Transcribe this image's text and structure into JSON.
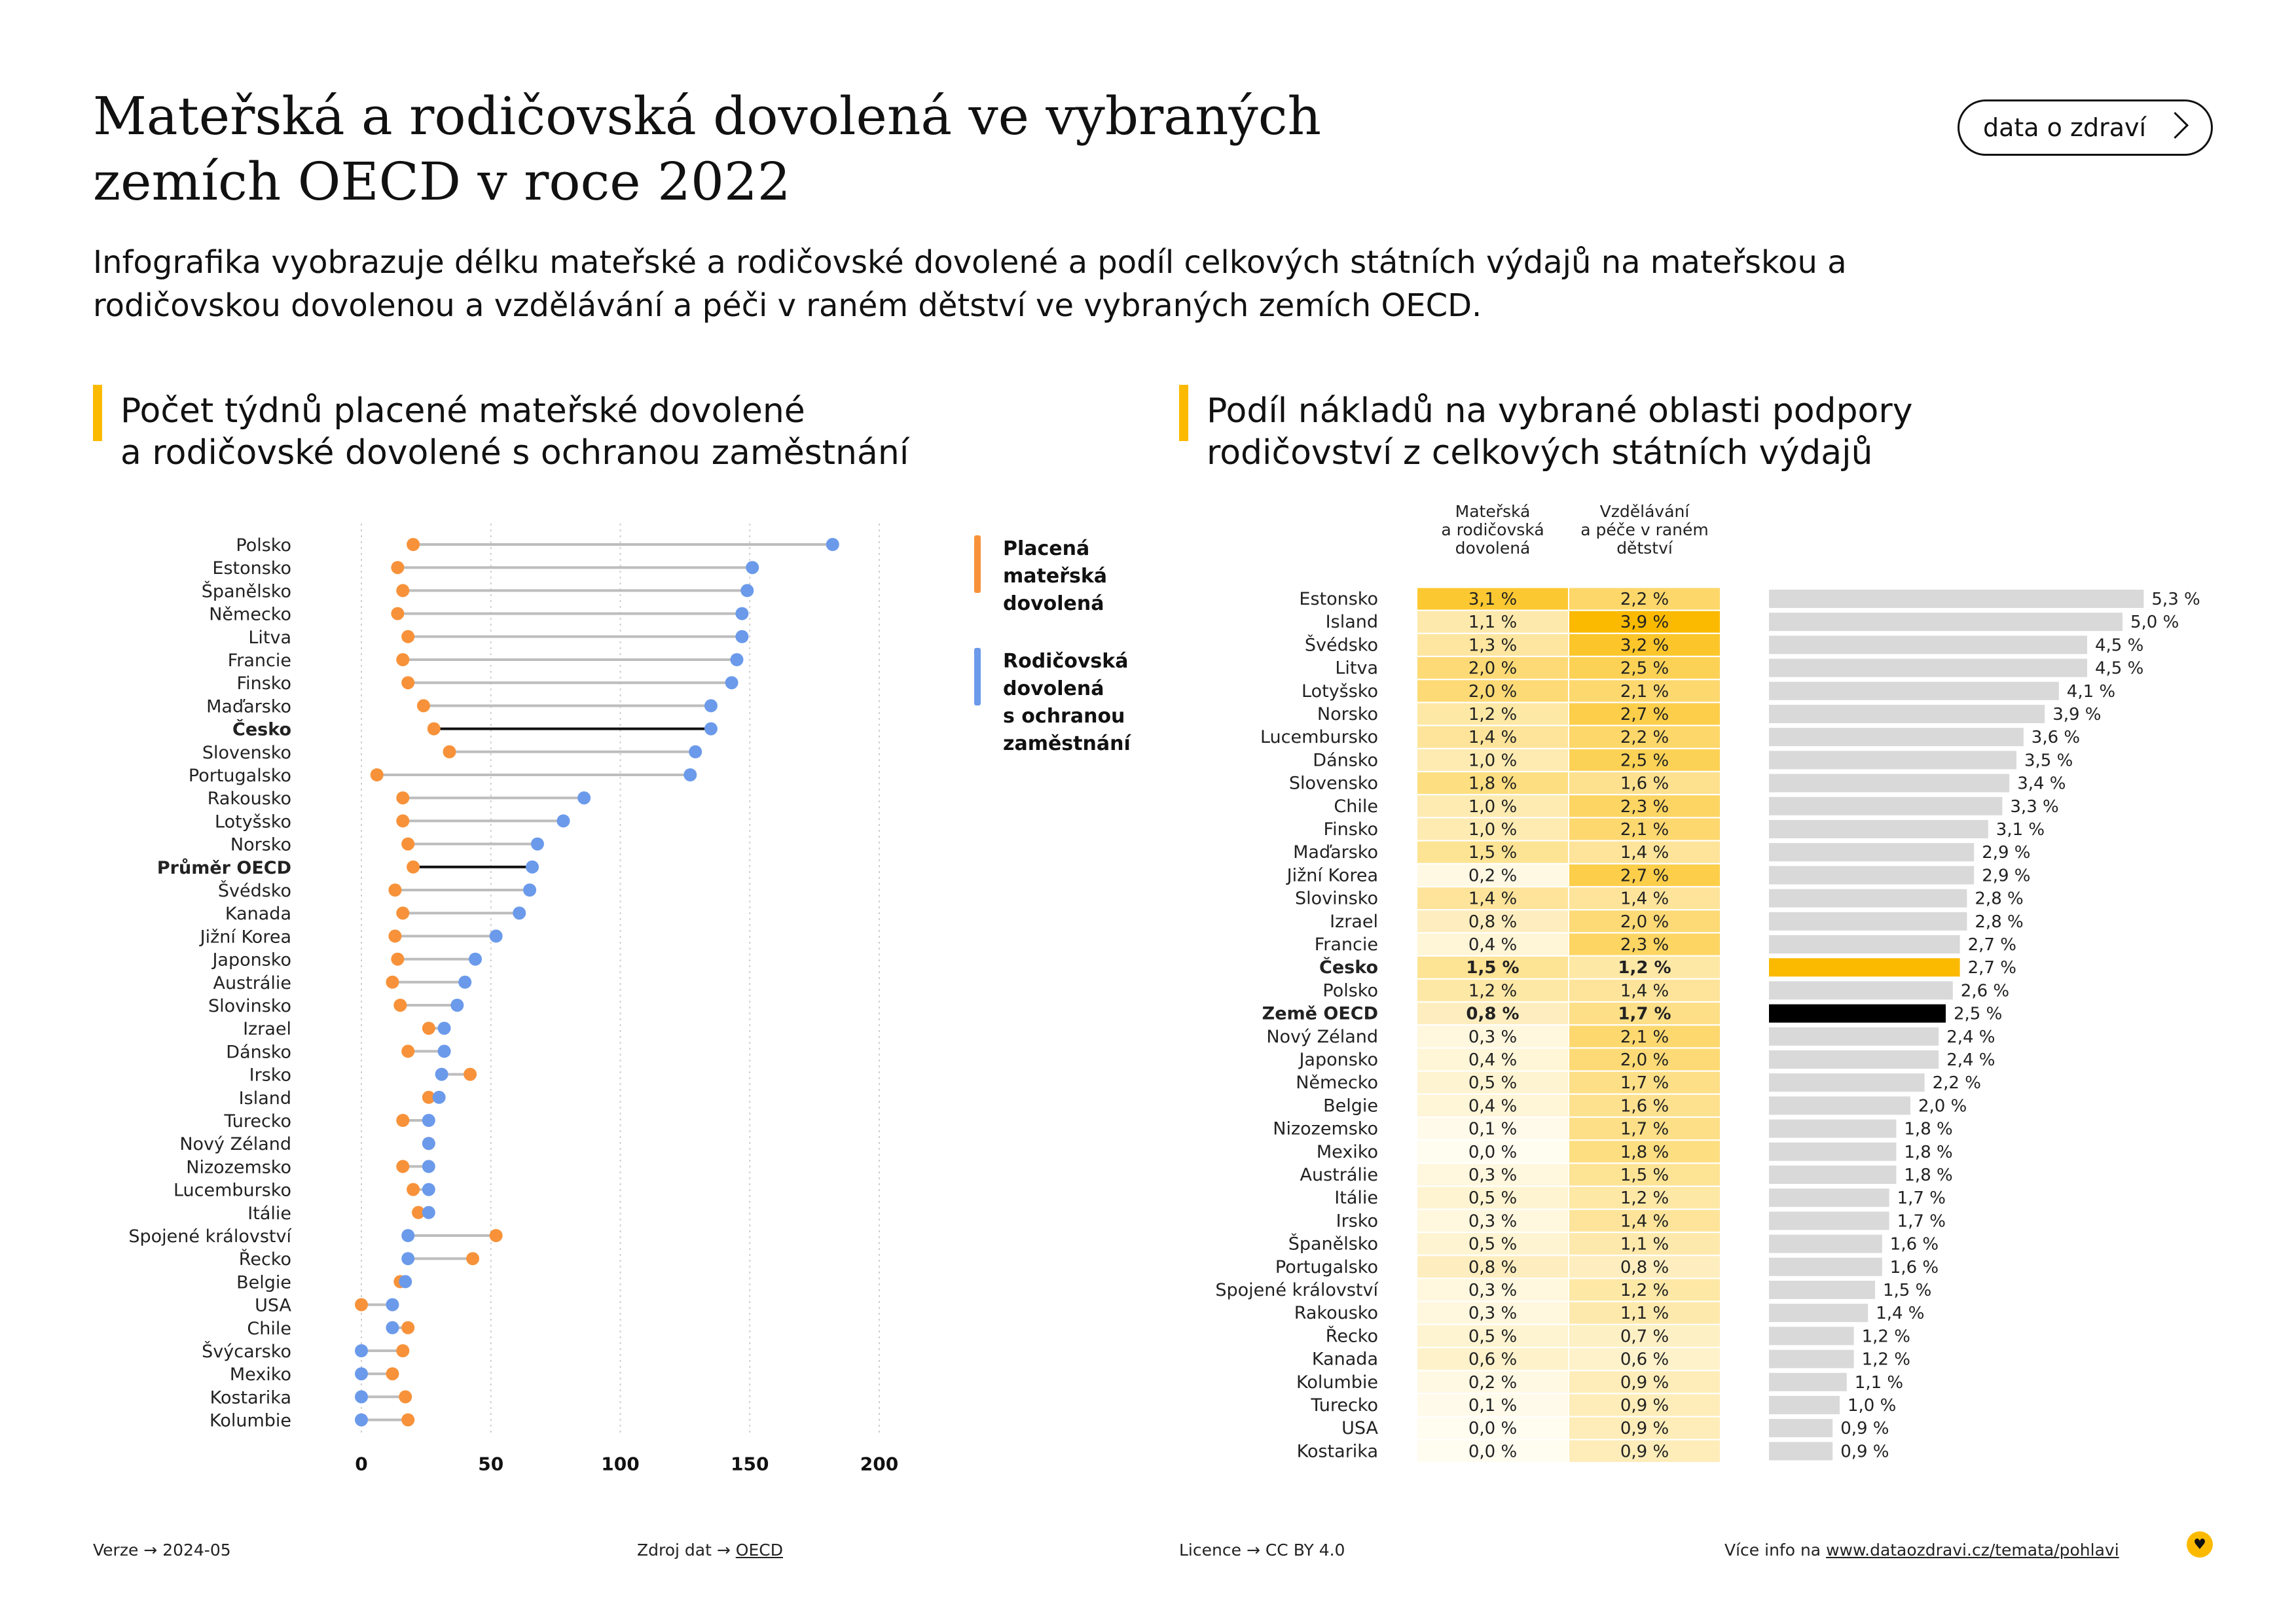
{
  "header": {
    "title": "Mateřská a rodičovská dovolená ve vybraných\nzemích OECD v roce 2022",
    "subtitle": "Infografika vyobrazuje délku mateřské a rodičovské dovolené a podíl celkových státních výdajů na mateřskou a rodičovskou dovolenou a vzdělávání a péči v raném dětství ve vybraných zemích OECD.",
    "brand_button": "data o zdraví"
  },
  "left_section": {
    "title": "Počet týdnů placené mateřské dovolené\na rodičovské dovolené s ochranou zaměstnání"
  },
  "right_section": {
    "title": "Podíl nákladů na vybrané oblasti podpory\nrodičovství z celkových státních výdajů"
  },
  "legend": {
    "maternity": "Placená\nmateřská\ndovolená",
    "parental": "Rodičovská\ndovolená\ns ochranou\nzaměstnání"
  },
  "colors": {
    "maternity": "#F7923A",
    "parental": "#6B9AEB",
    "accent": "#FBBA00",
    "highlight_line": "#111111",
    "connector": "#BDBDBD",
    "bar": "#D9D9D9",
    "bar_czech": "#FBBA00",
    "bar_oecd": "#000000"
  },
  "chart_data": [
    {
      "type": "dumbbell",
      "title": "Počet týdnů placené mateřské dovolené a rodičovské dovolené s ochranou zaměstnání",
      "x_ticks": [
        0,
        50,
        100,
        150,
        200
      ],
      "xlim": [
        0,
        200
      ],
      "grid": true,
      "legend_position": "right",
      "series": [
        {
          "name": "Placená mateřská dovolená"
        },
        {
          "name": "Rodičovská dovolená s ochranou zaměstnání"
        }
      ],
      "rows": [
        {
          "label": "Polsko",
          "maternity": 20,
          "parental": 182
        },
        {
          "label": "Estonsko",
          "maternity": 14,
          "parental": 151
        },
        {
          "label": "Španělsko",
          "maternity": 16,
          "parental": 149
        },
        {
          "label": "Německo",
          "maternity": 14,
          "parental": 147
        },
        {
          "label": "Litva",
          "maternity": 18,
          "parental": 147
        },
        {
          "label": "Francie",
          "maternity": 16,
          "parental": 145
        },
        {
          "label": "Finsko",
          "maternity": 18,
          "parental": 143
        },
        {
          "label": "Maďarsko",
          "maternity": 24,
          "parental": 135
        },
        {
          "label": "Česko",
          "maternity": 28,
          "parental": 135,
          "bold": true
        },
        {
          "label": "Slovensko",
          "maternity": 34,
          "parental": 129
        },
        {
          "label": "Portugalsko",
          "maternity": 6,
          "parental": 127
        },
        {
          "label": "Rakousko",
          "maternity": 16,
          "parental": 86
        },
        {
          "label": "Lotyšsko",
          "maternity": 16,
          "parental": 78
        },
        {
          "label": "Norsko",
          "maternity": 18,
          "parental": 68
        },
        {
          "label": "Průměr OECD",
          "maternity": 20,
          "parental": 66,
          "bold": true
        },
        {
          "label": "Švédsko",
          "maternity": 13,
          "parental": 65
        },
        {
          "label": "Kanada",
          "maternity": 16,
          "parental": 61
        },
        {
          "label": "Jižní Korea",
          "maternity": 13,
          "parental": 52
        },
        {
          "label": "Japonsko",
          "maternity": 14,
          "parental": 44
        },
        {
          "label": "Austrálie",
          "maternity": 12,
          "parental": 40
        },
        {
          "label": "Slovinsko",
          "maternity": 15,
          "parental": 37
        },
        {
          "label": "Izrael",
          "maternity": 26,
          "parental": 32
        },
        {
          "label": "Dánsko",
          "maternity": 18,
          "parental": 32
        },
        {
          "label": "Irsko",
          "maternity": 42,
          "parental": 31
        },
        {
          "label": "Island",
          "maternity": 26,
          "parental": 30
        },
        {
          "label": "Turecko",
          "maternity": 16,
          "parental": 26
        },
        {
          "label": "Nový Zéland",
          "maternity": 26,
          "parental": 26
        },
        {
          "label": "Nizozemsko",
          "maternity": 16,
          "parental": 26
        },
        {
          "label": "Lucembursko",
          "maternity": 20,
          "parental": 26
        },
        {
          "label": "Itálie",
          "maternity": 22,
          "parental": 26
        },
        {
          "label": "Spojené království",
          "maternity": 52,
          "parental": 18
        },
        {
          "label": "Řecko",
          "maternity": 43,
          "parental": 18
        },
        {
          "label": "Belgie",
          "maternity": 15,
          "parental": 17
        },
        {
          "label": "USA",
          "maternity": 0,
          "parental": 12
        },
        {
          "label": "Chile",
          "maternity": 18,
          "parental": 12
        },
        {
          "label": "Švýcarsko",
          "maternity": 16,
          "parental": 0
        },
        {
          "label": "Mexiko",
          "maternity": 12,
          "parental": 0
        },
        {
          "label": "Kostarika",
          "maternity": 17,
          "parental": 0
        },
        {
          "label": "Kolumbie",
          "maternity": 18,
          "parental": 0
        }
      ]
    },
    {
      "type": "table",
      "title": "Podíl nákladů na vybrané oblasti podpory rodičovství z celkových státních výdajů",
      "columns": [
        "Mateřská a rodičovská dovolená",
        "Vzdělávání a péče v raném dětství"
      ],
      "rows": [
        {
          "label": "Estonsko",
          "leave": "3,1 %",
          "ecec": "2,2 %",
          "total": 5.3,
          "total_label": "5,3 %"
        },
        {
          "label": "Island",
          "leave": "1,1 %",
          "ecec": "3,9 %",
          "total": 5.0,
          "total_label": "5,0 %"
        },
        {
          "label": "Švédsko",
          "leave": "1,3 %",
          "ecec": "3,2 %",
          "total": 4.5,
          "total_label": "4,5 %"
        },
        {
          "label": "Litva",
          "leave": "2,0 %",
          "ecec": "2,5 %",
          "total": 4.5,
          "total_label": "4,5 %"
        },
        {
          "label": "Lotyšsko",
          "leave": "2,0 %",
          "ecec": "2,1 %",
          "total": 4.1,
          "total_label": "4,1 %"
        },
        {
          "label": "Norsko",
          "leave": "1,2 %",
          "ecec": "2,7 %",
          "total": 3.9,
          "total_label": "3,9 %"
        },
        {
          "label": "Lucembursko",
          "leave": "1,4 %",
          "ecec": "2,2 %",
          "total": 3.6,
          "total_label": "3,6 %"
        },
        {
          "label": "Dánsko",
          "leave": "1,0 %",
          "ecec": "2,5 %",
          "total": 3.5,
          "total_label": "3,5 %"
        },
        {
          "label": "Slovensko",
          "leave": "1,8 %",
          "ecec": "1,6 %",
          "total": 3.4,
          "total_label": "3,4 %"
        },
        {
          "label": "Chile",
          "leave": "1,0 %",
          "ecec": "2,3 %",
          "total": 3.3,
          "total_label": "3,3 %"
        },
        {
          "label": "Finsko",
          "leave": "1,0 %",
          "ecec": "2,1 %",
          "total": 3.1,
          "total_label": "3,1 %"
        },
        {
          "label": "Maďarsko",
          "leave": "1,5 %",
          "ecec": "1,4 %",
          "total": 2.9,
          "total_label": "2,9 %"
        },
        {
          "label": "Jižní Korea",
          "leave": "0,2 %",
          "ecec": "2,7 %",
          "total": 2.9,
          "total_label": "2,9 %"
        },
        {
          "label": "Slovinsko",
          "leave": "1,4 %",
          "ecec": "1,4 %",
          "total": 2.8,
          "total_label": "2,8 %"
        },
        {
          "label": "Izrael",
          "leave": "0,8 %",
          "ecec": "2,0 %",
          "total": 2.8,
          "total_label": "2,8 %"
        },
        {
          "label": "Francie",
          "leave": "0,4 %",
          "ecec": "2,3 %",
          "total": 2.7,
          "total_label": "2,7 %"
        },
        {
          "label": "Česko",
          "leave": "1,5 %",
          "ecec": "1,2 %",
          "total": 2.7,
          "total_label": "2,7 %",
          "bold": true,
          "highlight": "czech"
        },
        {
          "label": "Polsko",
          "leave": "1,2 %",
          "ecec": "1,4 %",
          "total": 2.6,
          "total_label": "2,6 %"
        },
        {
          "label": "Země OECD",
          "leave": "0,8 %",
          "ecec": "1,7 %",
          "total": 2.5,
          "total_label": "2,5 %",
          "bold": true,
          "highlight": "oecd"
        },
        {
          "label": "Nový Zéland",
          "leave": "0,3 %",
          "ecec": "2,1 %",
          "total": 2.4,
          "total_label": "2,4 %"
        },
        {
          "label": "Japonsko",
          "leave": "0,4 %",
          "ecec": "2,0 %",
          "total": 2.4,
          "total_label": "2,4 %"
        },
        {
          "label": "Německo",
          "leave": "0,5 %",
          "ecec": "1,7 %",
          "total": 2.2,
          "total_label": "2,2 %"
        },
        {
          "label": "Belgie",
          "leave": "0,4 %",
          "ecec": "1,6 %",
          "total": 2.0,
          "total_label": "2,0 %"
        },
        {
          "label": "Nizozemsko",
          "leave": "0,1 %",
          "ecec": "1,7 %",
          "total": 1.8,
          "total_label": "1,8 %"
        },
        {
          "label": "Mexiko",
          "leave": "0,0 %",
          "ecec": "1,8 %",
          "total": 1.8,
          "total_label": "1,8 %"
        },
        {
          "label": "Austrálie",
          "leave": "0,3 %",
          "ecec": "1,5 %",
          "total": 1.8,
          "total_label": "1,8 %"
        },
        {
          "label": "Itálie",
          "leave": "0,5 %",
          "ecec": "1,2 %",
          "total": 1.7,
          "total_label": "1,7 %"
        },
        {
          "label": "Irsko",
          "leave": "0,3 %",
          "ecec": "1,4 %",
          "total": 1.7,
          "total_label": "1,7 %"
        },
        {
          "label": "Španělsko",
          "leave": "0,5 %",
          "ecec": "1,1 %",
          "total": 1.6,
          "total_label": "1,6 %"
        },
        {
          "label": "Portugalsko",
          "leave": "0,8 %",
          "ecec": "0,8 %",
          "total": 1.6,
          "total_label": "1,6 %"
        },
        {
          "label": "Spojené království",
          "leave": "0,3 %",
          "ecec": "1,2 %",
          "total": 1.5,
          "total_label": "1,5 %"
        },
        {
          "label": "Rakousko",
          "leave": "0,3 %",
          "ecec": "1,1 %",
          "total": 1.4,
          "total_label": "1,4 %"
        },
        {
          "label": "Řecko",
          "leave": "0,5 %",
          "ecec": "0,7 %",
          "total": 1.2,
          "total_label": "1,2 %"
        },
        {
          "label": "Kanada",
          "leave": "0,6 %",
          "ecec": "0,6 %",
          "total": 1.2,
          "total_label": "1,2 %"
        },
        {
          "label": "Kolumbie",
          "leave": "0,2 %",
          "ecec": "0,9 %",
          "total": 1.1,
          "total_label": "1,1 %"
        },
        {
          "label": "Turecko",
          "leave": "0,1 %",
          "ecec": "0,9 %",
          "total": 1.0,
          "total_label": "1,0 %"
        },
        {
          "label": "USA",
          "leave": "0,0 %",
          "ecec": "0,9 %",
          "total": 0.9,
          "total_label": "0,9 %"
        },
        {
          "label": "Kostarika",
          "leave": "0,0 %",
          "ecec": "0,9 %",
          "total": 0.9,
          "total_label": "0,9 %"
        }
      ]
    }
  ],
  "footer": {
    "version_label": "Verze",
    "version_value": "2024-05",
    "source_label": "Zdroj dat",
    "source_link": "OECD",
    "license_label": "Licence",
    "license_value": "CC BY 4.0",
    "info_label": "Více info na",
    "info_link": "www.dataozdravi.cz/temata/pohlavi",
    "arrow": "→"
  }
}
